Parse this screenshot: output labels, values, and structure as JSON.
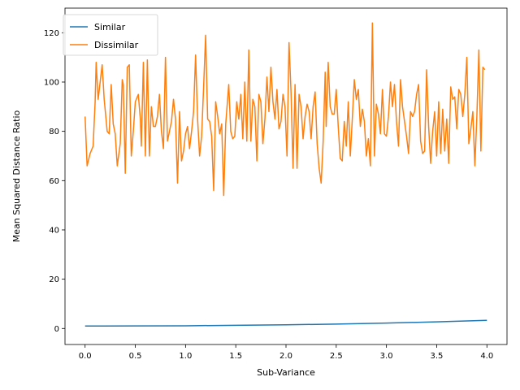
{
  "chart_data": {
    "type": "line",
    "title": "",
    "xlabel": "Sub-Variance",
    "ylabel": "Mean Squared Distance Ratio",
    "xlim": [
      -0.2,
      4.2
    ],
    "ylim": [
      -6.5,
      130
    ],
    "xticks": [
      0.0,
      0.5,
      1.0,
      1.5,
      2.0,
      2.5,
      3.0,
      3.5,
      4.0
    ],
    "xtick_labels": [
      "0.0",
      "0.5",
      "1.0",
      "1.5",
      "2.0",
      "2.5",
      "3.0",
      "3.5",
      "4.0"
    ],
    "yticks": [
      0,
      20,
      40,
      60,
      80,
      100,
      120
    ],
    "ytick_labels": [
      "0",
      "20",
      "40",
      "60",
      "80",
      "100",
      "120"
    ],
    "grid": false,
    "legend_position": "top-left",
    "series": [
      {
        "name": "Similar",
        "color": "#1f77b4",
        "points": [
          [
            0.0,
            1.0
          ],
          [
            0.5,
            1.05
          ],
          [
            1.0,
            1.1
          ],
          [
            1.5,
            1.3
          ],
          [
            2.0,
            1.5
          ],
          [
            2.5,
            1.8
          ],
          [
            3.0,
            2.2
          ],
          [
            3.5,
            2.7
          ],
          [
            4.0,
            3.3
          ]
        ]
      },
      {
        "name": "Dissimilar",
        "color": "#ff7f0e",
        "points": [
          [
            0.0,
            86
          ],
          [
            0.02,
            66
          ],
          [
            0.05,
            71
          ],
          [
            0.08,
            74
          ],
          [
            0.1,
            92
          ],
          [
            0.11,
            108
          ],
          [
            0.13,
            93
          ],
          [
            0.15,
            100
          ],
          [
            0.17,
            107
          ],
          [
            0.19,
            93
          ],
          [
            0.22,
            80
          ],
          [
            0.24,
            79
          ],
          [
            0.26,
            99
          ],
          [
            0.28,
            83
          ],
          [
            0.3,
            79
          ],
          [
            0.32,
            66
          ],
          [
            0.35,
            75
          ],
          [
            0.37,
            101
          ],
          [
            0.38,
            99
          ],
          [
            0.4,
            63
          ],
          [
            0.42,
            106
          ],
          [
            0.44,
            107
          ],
          [
            0.46,
            70
          ],
          [
            0.48,
            80
          ],
          [
            0.5,
            92
          ],
          [
            0.53,
            95
          ],
          [
            0.55,
            85
          ],
          [
            0.56,
            74
          ],
          [
            0.58,
            108
          ],
          [
            0.6,
            70
          ],
          [
            0.62,
            109
          ],
          [
            0.64,
            70
          ],
          [
            0.66,
            90
          ],
          [
            0.68,
            82
          ],
          [
            0.7,
            82
          ],
          [
            0.72,
            86
          ],
          [
            0.74,
            95
          ],
          [
            0.76,
            80
          ],
          [
            0.78,
            73
          ],
          [
            0.8,
            110
          ],
          [
            0.82,
            76
          ],
          [
            0.84,
            80
          ],
          [
            0.86,
            84
          ],
          [
            0.88,
            93
          ],
          [
            0.9,
            85
          ],
          [
            0.92,
            59
          ],
          [
            0.94,
            88
          ],
          [
            0.96,
            68
          ],
          [
            0.98,
            72
          ],
          [
            1.0,
            79
          ],
          [
            1.02,
            82
          ],
          [
            1.04,
            73
          ],
          [
            1.06,
            80
          ],
          [
            1.08,
            88
          ],
          [
            1.1,
            111
          ],
          [
            1.12,
            85
          ],
          [
            1.14,
            70
          ],
          [
            1.16,
            78
          ],
          [
            1.18,
            98
          ],
          [
            1.2,
            119
          ],
          [
            1.22,
            85
          ],
          [
            1.24,
            84
          ],
          [
            1.26,
            78
          ],
          [
            1.28,
            56
          ],
          [
            1.3,
            92
          ],
          [
            1.32,
            86
          ],
          [
            1.34,
            79
          ],
          [
            1.36,
            83
          ],
          [
            1.38,
            54
          ],
          [
            1.4,
            83
          ],
          [
            1.43,
            99
          ],
          [
            1.45,
            80
          ],
          [
            1.47,
            77
          ],
          [
            1.49,
            78
          ],
          [
            1.51,
            92
          ],
          [
            1.53,
            85
          ],
          [
            1.55,
            95
          ],
          [
            1.57,
            77
          ],
          [
            1.59,
            100
          ],
          [
            1.61,
            76
          ],
          [
            1.63,
            113
          ],
          [
            1.65,
            76
          ],
          [
            1.67,
            93
          ],
          [
            1.69,
            90
          ],
          [
            1.71,
            68
          ],
          [
            1.73,
            95
          ],
          [
            1.75,
            92
          ],
          [
            1.77,
            75
          ],
          [
            1.79,
            85
          ],
          [
            1.81,
            102
          ],
          [
            1.83,
            88
          ],
          [
            1.85,
            106
          ],
          [
            1.87,
            92
          ],
          [
            1.89,
            85
          ],
          [
            1.91,
            97
          ],
          [
            1.93,
            81
          ],
          [
            1.95,
            84
          ],
          [
            1.97,
            95
          ],
          [
            1.99,
            90
          ],
          [
            2.01,
            70
          ],
          [
            2.03,
            116
          ],
          [
            2.05,
            96
          ],
          [
            2.07,
            65
          ],
          [
            2.09,
            99
          ],
          [
            2.11,
            65
          ],
          [
            2.13,
            95
          ],
          [
            2.15,
            90
          ],
          [
            2.17,
            77
          ],
          [
            2.19,
            86
          ],
          [
            2.21,
            91
          ],
          [
            2.23,
            88
          ],
          [
            2.25,
            77
          ],
          [
            2.27,
            90
          ],
          [
            2.29,
            96
          ],
          [
            2.31,
            75
          ],
          [
            2.33,
            65
          ],
          [
            2.35,
            59
          ],
          [
            2.37,
            76
          ],
          [
            2.39,
            104
          ],
          [
            2.4,
            82
          ],
          [
            2.42,
            108
          ],
          [
            2.44,
            90
          ],
          [
            2.46,
            87
          ],
          [
            2.48,
            87
          ],
          [
            2.5,
            97
          ],
          [
            2.52,
            82
          ],
          [
            2.54,
            69
          ],
          [
            2.56,
            68
          ],
          [
            2.58,
            84
          ],
          [
            2.6,
            74
          ],
          [
            2.62,
            92
          ],
          [
            2.64,
            70
          ],
          [
            2.66,
            85
          ],
          [
            2.68,
            101
          ],
          [
            2.7,
            93
          ],
          [
            2.72,
            97
          ],
          [
            2.74,
            82
          ],
          [
            2.76,
            89
          ],
          [
            2.78,
            84
          ],
          [
            2.8,
            70
          ],
          [
            2.82,
            77
          ],
          [
            2.84,
            66
          ],
          [
            2.86,
            124
          ],
          [
            2.88,
            70
          ],
          [
            2.9,
            91
          ],
          [
            2.92,
            87
          ],
          [
            2.94,
            79
          ],
          [
            2.96,
            97
          ],
          [
            2.98,
            79
          ],
          [
            3.0,
            78
          ],
          [
            3.02,
            86
          ],
          [
            3.04,
            100
          ],
          [
            3.06,
            90
          ],
          [
            3.08,
            99
          ],
          [
            3.1,
            84
          ],
          [
            3.12,
            74
          ],
          [
            3.14,
            101
          ],
          [
            3.16,
            90
          ],
          [
            3.18,
            84
          ],
          [
            3.2,
            78
          ],
          [
            3.22,
            71
          ],
          [
            3.24,
            88
          ],
          [
            3.26,
            86
          ],
          [
            3.28,
            88
          ],
          [
            3.3,
            95
          ],
          [
            3.32,
            99
          ],
          [
            3.34,
            76
          ],
          [
            3.36,
            71
          ],
          [
            3.38,
            72
          ],
          [
            3.4,
            105
          ],
          [
            3.42,
            82
          ],
          [
            3.44,
            67
          ],
          [
            3.46,
            80
          ],
          [
            3.48,
            88
          ],
          [
            3.5,
            70
          ],
          [
            3.52,
            92
          ],
          [
            3.54,
            71
          ],
          [
            3.56,
            89
          ],
          [
            3.58,
            72
          ],
          [
            3.6,
            85
          ],
          [
            3.62,
            67
          ],
          [
            3.64,
            98
          ],
          [
            3.66,
            93
          ],
          [
            3.68,
            94
          ],
          [
            3.7,
            81
          ],
          [
            3.72,
            97
          ],
          [
            3.74,
            95
          ],
          [
            3.76,
            86
          ],
          [
            3.78,
            95
          ],
          [
            3.8,
            110
          ],
          [
            3.82,
            75
          ],
          [
            3.84,
            81
          ],
          [
            3.86,
            88
          ],
          [
            3.88,
            66
          ],
          [
            3.9,
            86
          ],
          [
            3.92,
            113
          ],
          [
            3.94,
            72
          ],
          [
            3.96,
            106
          ],
          [
            3.98,
            105
          ]
        ]
      }
    ]
  }
}
